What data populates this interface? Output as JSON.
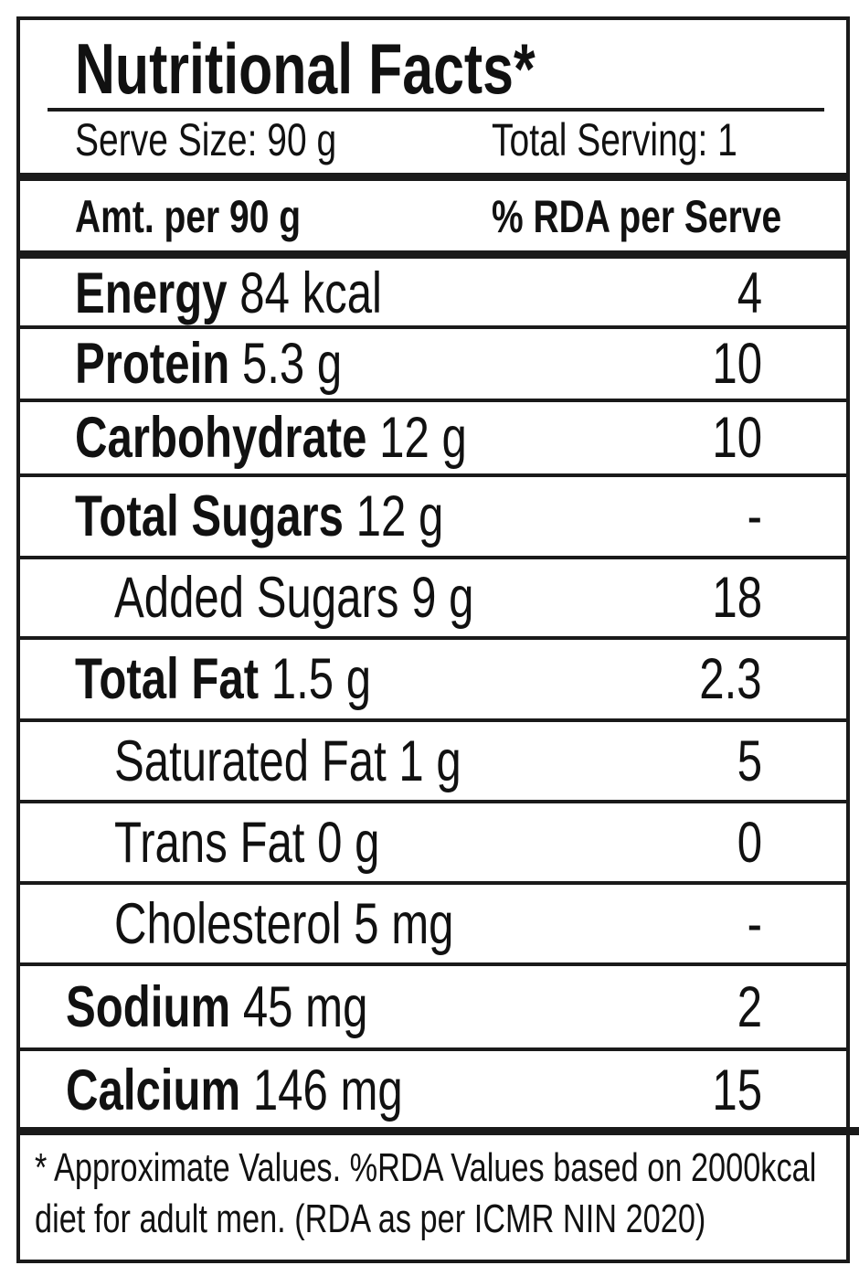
{
  "title": "Nutritional Facts*",
  "serve_size": "Serve Size: 90 g",
  "total_serving": "Total Serving: 1",
  "column_headers": {
    "amount": "Amt. per 90 g",
    "rda": "% RDA per Serve"
  },
  "rows": [
    {
      "name": "Energy",
      "amount": "84 kcal",
      "rda": "4",
      "bold": true,
      "indent": "normal"
    },
    {
      "name": "Protein",
      "amount": "5.3 g",
      "rda": "10",
      "bold": true,
      "indent": "normal"
    },
    {
      "name": "Carbohydrate",
      "amount": "12 g",
      "rda": "10",
      "bold": true,
      "indent": "normal"
    },
    {
      "name": "Total Sugars",
      "amount": "12 g",
      "rda": "-",
      "bold": true,
      "indent": "normal"
    },
    {
      "name": "Added Sugars",
      "amount": "9 g",
      "rda": "18",
      "bold": false,
      "indent": "sub"
    },
    {
      "name": "Total Fat",
      "amount": "1.5 g",
      "rda": "2.3",
      "bold": true,
      "indent": "normal"
    },
    {
      "name": "Saturated Fat",
      "amount": "1 g",
      "rda": "5",
      "bold": false,
      "indent": "sub"
    },
    {
      "name": "Trans Fat",
      "amount": "0 g",
      "rda": "0",
      "bold": false,
      "indent": "sub"
    },
    {
      "name": "Cholesterol",
      "amount": "5 mg",
      "rda": "-",
      "bold": false,
      "indent": "sub"
    },
    {
      "name": "Sodium",
      "amount": "45 mg",
      "rda": "2",
      "bold": true,
      "indent": "outdent"
    },
    {
      "name": "Calcium",
      "amount": "146 mg",
      "rda": "15",
      "bold": true,
      "indent": "outdent"
    }
  ],
  "footnote_line1": "* Approximate Values. %RDA Values based on 2000kcal",
  "footnote_line2": "diet for adult men. (RDA as per ICMR NIN 2020)"
}
